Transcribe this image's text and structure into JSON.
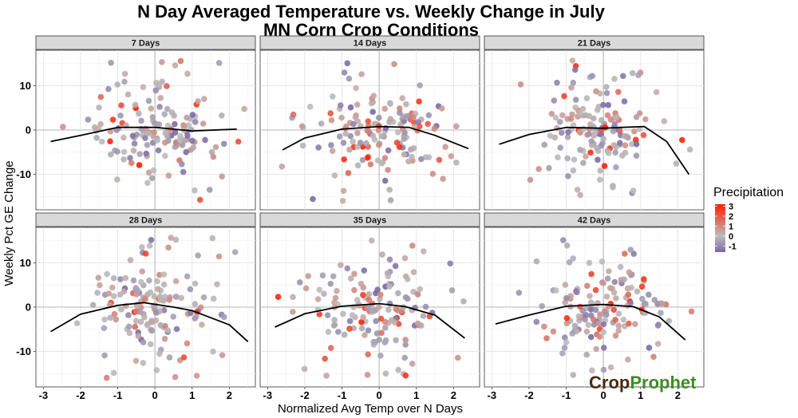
{
  "chart_data": {
    "type": "scatter",
    "title_line1": "N Day Averaged Temperature vs. Weekly Change in July",
    "title_line2": "MN Corn Crop Conditions",
    "xlabel": "Normalized Avg Temp over N Days",
    "ylabel": "Weekly Pct GE Change",
    "xlim": [
      -3.2,
      2.7
    ],
    "ylim": [
      -18,
      18
    ],
    "x_ticks": [
      "-3",
      "-2",
      "-1",
      "0",
      "1",
      "2"
    ],
    "y_ticks": [
      "-10",
      "0",
      "10"
    ],
    "grid": true,
    "legend": {
      "title": "Precipitation",
      "position": "right",
      "labels": [
        "3",
        "2",
        "1",
        "0",
        "-1"
      ],
      "range": [
        -1.6,
        3.2
      ],
      "colors": {
        "low": "#7a6aa6",
        "mid": "#bbbbbb",
        "high": "#ff1e00"
      }
    },
    "trend_color": "#000000",
    "panels": [
      {
        "label": "7 Days",
        "trend": [
          [
            -2.8,
            -2.6
          ],
          [
            -2,
            -1.2
          ],
          [
            -1,
            0.6
          ],
          [
            0,
            0.6
          ],
          [
            1,
            -0.2
          ],
          [
            2.2,
            0.2
          ]
        ]
      },
      {
        "label": "14 Days",
        "trend": [
          [
            -2.6,
            -4.5
          ],
          [
            -2,
            -1.8
          ],
          [
            -1,
            0.2
          ],
          [
            0,
            0.8
          ],
          [
            0.8,
            0.6
          ],
          [
            1.5,
            -1.2
          ],
          [
            2.4,
            -4.2
          ]
        ]
      },
      {
        "label": "21 Days",
        "trend": [
          [
            -2.8,
            -3.2
          ],
          [
            -2,
            -1
          ],
          [
            -1,
            0.6
          ],
          [
            0,
            0.4
          ],
          [
            0.5,
            0.6
          ],
          [
            1.1,
            0.8
          ],
          [
            1.7,
            -2.6
          ],
          [
            2.3,
            -10
          ]
        ]
      },
      {
        "label": "28 Days",
        "trend": [
          [
            -2.8,
            -5.5
          ],
          [
            -2,
            -1.6
          ],
          [
            -1,
            0.4
          ],
          [
            -0.3,
            1
          ],
          [
            0.5,
            0
          ],
          [
            1,
            -0.8
          ],
          [
            2,
            -4
          ],
          [
            2.5,
            -7.8
          ]
        ]
      },
      {
        "label": "35 Days",
        "trend": [
          [
            -2.8,
            -4.5
          ],
          [
            -2,
            -1.5
          ],
          [
            -1,
            0.2
          ],
          [
            0,
            0.8
          ],
          [
            0.7,
            0.1
          ],
          [
            1.5,
            -1.8
          ],
          [
            2.3,
            -7
          ]
        ]
      },
      {
        "label": "42 Days",
        "trend": [
          [
            -2.9,
            -3.8
          ],
          [
            -2,
            -1.8
          ],
          [
            -1,
            0.2
          ],
          [
            0,
            0.6
          ],
          [
            0.8,
            0.1
          ],
          [
            1.5,
            -2.2
          ],
          [
            2.2,
            -7.4
          ]
        ]
      }
    ]
  },
  "branding": {
    "part1": "Crop",
    "part2": "Prophet"
  }
}
